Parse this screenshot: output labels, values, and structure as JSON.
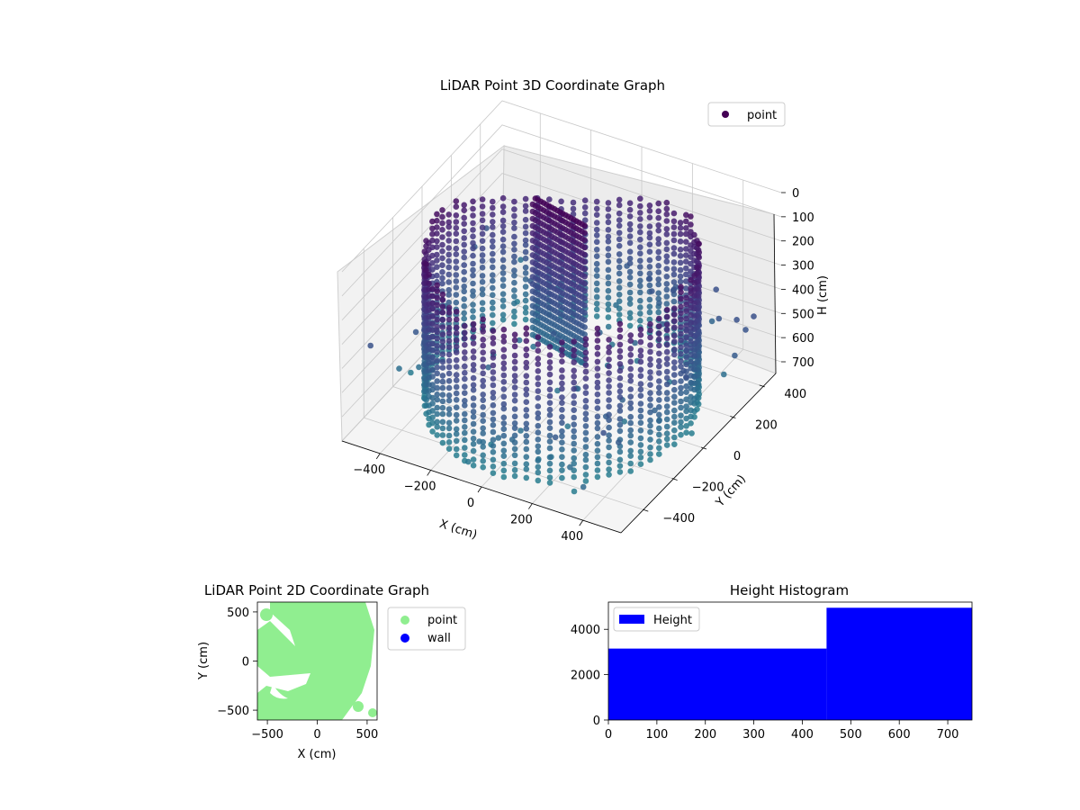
{
  "chart_data": [
    {
      "type": "scatter3d",
      "title": "LiDAR Point 3D Coordinate Graph",
      "xlabel": "X (cm)",
      "ylabel": "Y (cm)",
      "zlabel": "H (cm)",
      "xticks": [
        "−400",
        "−200",
        "0",
        "200",
        "400"
      ],
      "yticks": [
        "−400",
        "−200",
        "0",
        "200",
        "400"
      ],
      "zticks": [
        "0",
        "100",
        "200",
        "300",
        "400",
        "500",
        "600",
        "700"
      ],
      "xlim": [
        -550,
        550
      ],
      "ylim": [
        -550,
        550
      ],
      "zlim": [
        700,
        0
      ],
      "z_axis_inverted": true,
      "grid": true,
      "legend": {
        "placement": "upper-right",
        "entries": [
          {
            "label": "point",
            "color": "#440154"
          }
        ]
      },
      "colormap": "viridis",
      "point_groups": [
        {
          "description": "cylindrical wall ring",
          "center": [
            0,
            0
          ],
          "radius": 470,
          "height_range": [
            0,
            700
          ]
        },
        {
          "description": "inner wall segment",
          "center": [
            -200,
            150
          ],
          "height_range": [
            0,
            600
          ]
        }
      ]
    },
    {
      "type": "scatter",
      "title": "LiDAR Point 2D Coordinate Graph",
      "xlabel": "X (cm)",
      "ylabel": "Y (cm)",
      "xticks": [
        "−500",
        "0",
        "500"
      ],
      "yticks": [
        "−500",
        "0",
        "500"
      ],
      "xlim": [
        -600,
        600
      ],
      "ylim": [
        -600,
        600
      ],
      "legend": {
        "placement": "outside-right",
        "entries": [
          {
            "label": "point",
            "color": "#90ee90"
          },
          {
            "label": "wall",
            "color": "#0000ff"
          }
        ]
      }
    },
    {
      "type": "bar",
      "title": "Height Histogram",
      "bins": [
        {
          "x0": 0,
          "x1": 450,
          "count": 3150
        },
        {
          "x0": 450,
          "x1": 750,
          "count": 4950
        }
      ],
      "xlim": [
        0,
        750
      ],
      "ylim": [
        0,
        5200
      ],
      "xticks": [
        "0",
        "100",
        "200",
        "300",
        "400",
        "500",
        "600",
        "700"
      ],
      "yticks": [
        "0",
        "2000",
        "4000"
      ],
      "color": "#0000ff",
      "legend": {
        "placement": "upper-left",
        "entries": [
          {
            "label": "Height",
            "color": "#0000ff"
          }
        ]
      }
    }
  ]
}
